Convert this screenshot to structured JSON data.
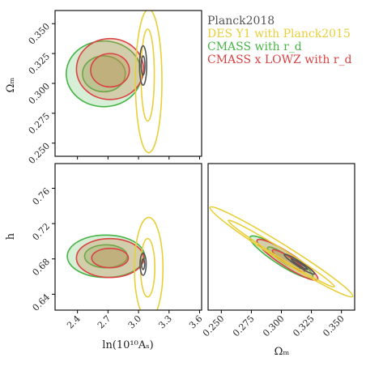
{
  "chart_data": {
    "type": "corner-contour",
    "parameters": {
      "As": {
        "label": "ln(10¹⁰Aₛ)",
        "ticks": [
          "2.4",
          "2.7",
          "3.0",
          "3.3",
          "3.6"
        ],
        "tick_values": [
          2.4,
          2.7,
          3.0,
          3.3,
          3.6
        ],
        "range": [
          2.18,
          3.62
        ]
      },
      "Om": {
        "label": "Ωₘ",
        "ticks": [
          "0.250",
          "0.275",
          "0.300",
          "0.325",
          "0.350"
        ],
        "tick_values": [
          0.25,
          0.275,
          0.3,
          0.325,
          0.35
        ],
        "range": [
          0.239,
          0.361
        ]
      },
      "h": {
        "label": "h",
        "ticks": [
          "0.64",
          "0.68",
          "0.72",
          "0.76"
        ],
        "tick_values": [
          0.64,
          0.68,
          0.72,
          0.76
        ],
        "range": [
          0.622,
          0.788
        ]
      }
    },
    "legend": [
      {
        "name": "Planck2018",
        "color": "#555555"
      },
      {
        "name": "DES Y1 with Planck2015",
        "color": "#e8cf3a"
      },
      {
        "name": "CMASS with r_d",
        "color": "#46b446"
      },
      {
        "name": "CMASS x LOWZ with r_d",
        "color": "#d94343"
      }
    ],
    "series": [
      {
        "name": "CMASS with r_d",
        "color": "#46b446",
        "fill": "#46b446",
        "fill_opacity": 0.22,
        "As_Om": [
          {
            "cx": 2.66,
            "cy": 0.308,
            "rx": 0.37,
            "ry": 0.0275
          },
          {
            "cx": 2.66,
            "cy": 0.308,
            "rx": 0.21,
            "ry": 0.015
          }
        ],
        "As_h": [
          {
            "cx": 2.68,
            "cy": 0.683,
            "rx": 0.38,
            "ry": 0.024
          },
          {
            "cx": 2.68,
            "cy": 0.683,
            "rx": 0.21,
            "ry": 0.013
          }
        ],
        "Om_h": [
          {
            "cx": 0.3,
            "cy": 0.682,
            "rx": 0.031,
            "ry": 0.0085,
            "rot": 33
          },
          {
            "cx": 0.302,
            "cy": 0.681,
            "rx": 0.016,
            "ry": 0.0045,
            "rot": 33
          }
        ]
      },
      {
        "name": "CMASS x LOWZ with r_d",
        "color": "#d94343",
        "fill": "#c9874f",
        "fill_opacity": 0.32,
        "As_Om": [
          {
            "cx": 2.72,
            "cy": 0.312,
            "rx": 0.33,
            "ry": 0.0255
          },
          {
            "cx": 2.72,
            "cy": 0.311,
            "rx": 0.19,
            "ry": 0.014
          }
        ],
        "As_h": [
          {
            "cx": 2.72,
            "cy": 0.681,
            "rx": 0.33,
            "ry": 0.022
          },
          {
            "cx": 2.72,
            "cy": 0.681,
            "rx": 0.18,
            "ry": 0.011
          }
        ],
        "Om_h": [
          {
            "cx": 0.305,
            "cy": 0.679,
            "rx": 0.03,
            "ry": 0.0078,
            "rot": 33
          },
          {
            "cx": 0.306,
            "cy": 0.678,
            "rx": 0.016,
            "ry": 0.0042,
            "rot": 33
          }
        ]
      },
      {
        "name": "DES Y1 with Planck2015",
        "color": "#e8cf3a",
        "fill": "none",
        "fill_opacity": 0,
        "As_Om": [
          {
            "cx": 3.1,
            "cy": 0.302,
            "rx": 0.13,
            "ry": 0.06
          },
          {
            "cx": 3.09,
            "cy": 0.307,
            "rx": 0.065,
            "ry": 0.0385
          }
        ],
        "As_h": [
          {
            "cx": 3.1,
            "cy": 0.669,
            "rx": 0.14,
            "ry": 0.058
          },
          {
            "cx": 3.09,
            "cy": 0.67,
            "rx": 0.07,
            "ry": 0.033
          }
        ],
        "Om_h": [
          {
            "cx": 0.3,
            "cy": 0.688,
            "rx": 0.07,
            "ry": 0.0085,
            "rot": 32
          },
          {
            "cx": 0.3,
            "cy": 0.686,
            "rx": 0.052,
            "ry": 0.005,
            "rot": 32
          }
        ]
      },
      {
        "name": "Planck2018",
        "color": "#555555",
        "fill": "none",
        "fill_opacity": 0,
        "As_Om": [
          {
            "cx": 3.045,
            "cy": 0.315,
            "rx": 0.035,
            "ry": 0.0165
          },
          {
            "cx": 3.045,
            "cy": 0.315,
            "rx": 0.018,
            "ry": 0.008
          }
        ],
        "As_h": [
          {
            "cx": 3.045,
            "cy": 0.674,
            "rx": 0.03,
            "ry": 0.0125
          },
          {
            "cx": 3.045,
            "cy": 0.674,
            "rx": 0.015,
            "ry": 0.006
          }
        ],
        "Om_h": [
          {
            "cx": 0.315,
            "cy": 0.674,
            "rx": 0.015,
            "ry": 0.0028,
            "rot": 33
          },
          {
            "cx": 0.315,
            "cy": 0.674,
            "rx": 0.008,
            "ry": 0.0014,
            "rot": 33
          }
        ]
      }
    ]
  }
}
